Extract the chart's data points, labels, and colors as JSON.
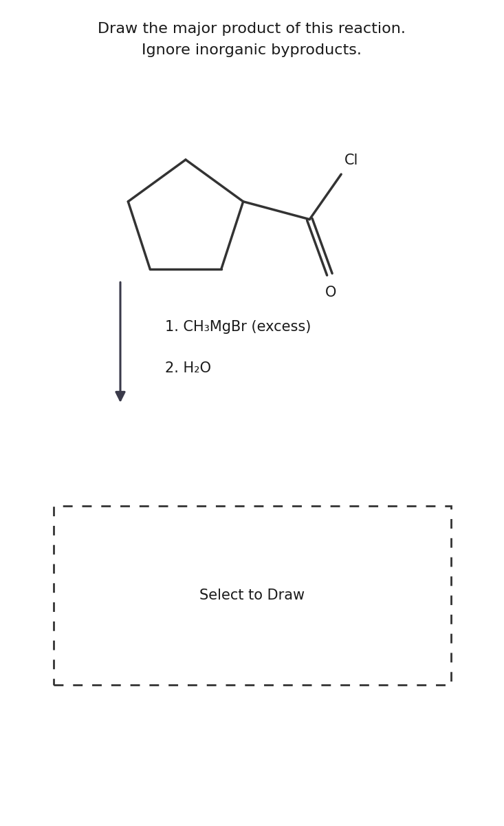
{
  "title_line1": "Draw the major product of this reaction.",
  "title_line2": "Ignore inorganic byproducts.",
  "title_fontsize": 16,
  "reagent_line1": "1. CH₃MgBr (excess)",
  "reagent_line2": "2. H₂O",
  "select_text": "Select to Draw",
  "bg_color": "#ffffff",
  "line_color": "#333333",
  "text_color": "#1a1a1a",
  "arrow_color": "#3a3a4a",
  "molecule_color": "#333333",
  "mol_lw": 2.5
}
